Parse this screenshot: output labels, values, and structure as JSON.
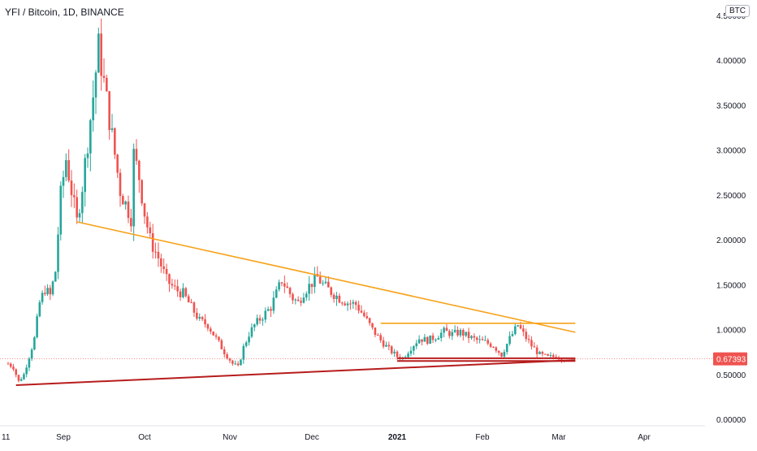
{
  "header": {
    "title": "YFI / Bitcoin, 1D, BINANCE",
    "currency_badge": "BTC"
  },
  "colors": {
    "up": "#26a69a",
    "down": "#ef5350",
    "trend_orange": "#f7a21b",
    "trend_red": "#b71c1c",
    "price_line": "#ef5350",
    "axis_text": "#131722"
  },
  "chart_data": {
    "type": "candlestick",
    "symbol": "YFI / Bitcoin",
    "interval": "1D",
    "exchange": "BINANCE",
    "y_axis": {
      "range": [
        0.0,
        4.5
      ],
      "ticks": [
        0.0,
        0.5,
        1.0,
        1.5,
        2.0,
        2.5,
        3.0,
        3.5,
        4.0,
        4.5
      ],
      "tick_labels": [
        "0.00000",
        "0.50000",
        "1.00000",
        "1.50000",
        "2.00000",
        "2.50000",
        "3.00000",
        "3.50000",
        "4.00000",
        "4.50000"
      ]
    },
    "x_axis": {
      "start": "2020-08-11",
      "end": "2021-04-30",
      "tick_labels": [
        {
          "label": "11",
          "date": "2020-08-11"
        },
        {
          "label": "Sep",
          "date": "2020-09-01"
        },
        {
          "label": "Oct",
          "date": "2020-10-01"
        },
        {
          "label": "Nov",
          "date": "2020-11-01"
        },
        {
          "label": "Dec",
          "date": "2020-12-01"
        },
        {
          "label": "2021",
          "date": "2021-01-01",
          "bold": true
        },
        {
          "label": "Feb",
          "date": "2021-02-01"
        },
        {
          "label": "Mar",
          "date": "2021-03-01"
        },
        {
          "label": "Apr",
          "date": "2021-04-01"
        }
      ]
    },
    "last_price": 0.67393,
    "last_price_label": "0.67393",
    "price_anchors": [
      [
        "2020-08-11",
        0.62
      ],
      [
        "2020-08-13",
        0.58
      ],
      [
        "2020-08-15",
        0.42
      ],
      [
        "2020-08-17",
        0.5
      ],
      [
        "2020-08-19",
        0.7
      ],
      [
        "2020-08-21",
        0.9
      ],
      [
        "2020-08-23",
        1.3
      ],
      [
        "2020-08-25",
        1.45
      ],
      [
        "2020-08-27",
        1.38
      ],
      [
        "2020-08-29",
        1.65
      ],
      [
        "2020-08-31",
        2.5
      ],
      [
        "2020-09-02",
        2.9
      ],
      [
        "2020-09-04",
        2.55
      ],
      [
        "2020-09-06",
        2.2
      ],
      [
        "2020-09-08",
        2.6
      ],
      [
        "2020-09-10",
        3.1
      ],
      [
        "2020-09-12",
        3.6
      ],
      [
        "2020-09-14",
        4.15
      ],
      [
        "2020-09-16",
        3.75
      ],
      [
        "2020-09-18",
        3.35
      ],
      [
        "2020-09-20",
        2.95
      ],
      [
        "2020-09-22",
        2.55
      ],
      [
        "2020-09-24",
        2.4
      ],
      [
        "2020-09-26",
        2.25
      ],
      [
        "2020-09-27",
        2.95
      ],
      [
        "2020-09-29",
        2.7
      ],
      [
        "2020-10-01",
        2.3
      ],
      [
        "2020-10-03",
        2.0
      ],
      [
        "2020-10-06",
        1.8
      ],
      [
        "2020-10-09",
        1.55
      ],
      [
        "2020-10-12",
        1.45
      ],
      [
        "2020-10-15",
        1.4
      ],
      [
        "2020-10-18",
        1.25
      ],
      [
        "2020-10-21",
        1.1
      ],
      [
        "2020-10-24",
        1.05
      ],
      [
        "2020-10-27",
        0.9
      ],
      [
        "2020-10-30",
        0.75
      ],
      [
        "2020-11-02",
        0.62
      ],
      [
        "2020-11-04",
        0.58
      ],
      [
        "2020-11-06",
        0.8
      ],
      [
        "2020-11-08",
        0.95
      ],
      [
        "2020-11-10",
        1.05
      ],
      [
        "2020-11-13",
        1.15
      ],
      [
        "2020-11-16",
        1.25
      ],
      [
        "2020-11-18",
        1.4
      ],
      [
        "2020-11-20",
        1.55
      ],
      [
        "2020-11-22",
        1.45
      ],
      [
        "2020-11-24",
        1.35
      ],
      [
        "2020-11-26",
        1.3
      ],
      [
        "2020-11-28",
        1.42
      ],
      [
        "2020-12-01",
        1.52
      ],
      [
        "2020-12-03",
        1.58
      ],
      [
        "2020-12-05",
        1.5
      ],
      [
        "2020-12-08",
        1.42
      ],
      [
        "2020-12-11",
        1.35
      ],
      [
        "2020-12-14",
        1.3
      ],
      [
        "2020-12-17",
        1.28
      ],
      [
        "2020-12-20",
        1.15
      ],
      [
        "2020-12-23",
        1.0
      ],
      [
        "2020-12-26",
        0.88
      ],
      [
        "2020-12-29",
        0.78
      ],
      [
        "2021-01-01",
        0.7
      ],
      [
        "2021-01-03",
        0.68
      ],
      [
        "2021-01-06",
        0.8
      ],
      [
        "2021-01-09",
        0.9
      ],
      [
        "2021-01-12",
        0.88
      ],
      [
        "2021-01-15",
        0.92
      ],
      [
        "2021-01-18",
        0.98
      ],
      [
        "2021-01-21",
        0.95
      ],
      [
        "2021-01-24",
        0.97
      ],
      [
        "2021-01-27",
        0.92
      ],
      [
        "2021-01-30",
        0.88
      ],
      [
        "2021-02-02",
        0.86
      ],
      [
        "2021-02-05",
        0.82
      ],
      [
        "2021-02-08",
        0.72
      ],
      [
        "2021-02-11",
        0.9
      ],
      [
        "2021-02-14",
        1.05
      ],
      [
        "2021-02-16",
        0.95
      ],
      [
        "2021-02-19",
        0.82
      ],
      [
        "2021-02-22",
        0.72
      ],
      [
        "2021-02-25",
        0.69
      ],
      [
        "2021-02-28",
        0.7
      ],
      [
        "2021-03-03",
        0.67393
      ]
    ],
    "drawings": [
      {
        "name": "descending-resistance-line",
        "color": "orange",
        "from": [
          "2020-09-06",
          2.2
        ],
        "to": [
          "2021-03-07",
          0.97
        ]
      },
      {
        "name": "ascending-support-line",
        "color": "red",
        "from": [
          "2020-08-14",
          0.38
        ],
        "to": [
          "2021-03-07",
          0.66
        ]
      },
      {
        "name": "range-top-line",
        "color": "orange",
        "from": [
          "2020-12-26",
          1.07
        ],
        "to": [
          "2021-03-07",
          1.07
        ]
      },
      {
        "name": "range-bottom-line-1",
        "color": "red",
        "from": [
          "2021-01-01",
          0.68
        ],
        "to": [
          "2021-03-07",
          0.68
        ]
      },
      {
        "name": "range-bottom-line-2",
        "color": "red",
        "from": [
          "2021-01-01",
          0.65
        ],
        "to": [
          "2021-03-07",
          0.65
        ]
      }
    ]
  }
}
